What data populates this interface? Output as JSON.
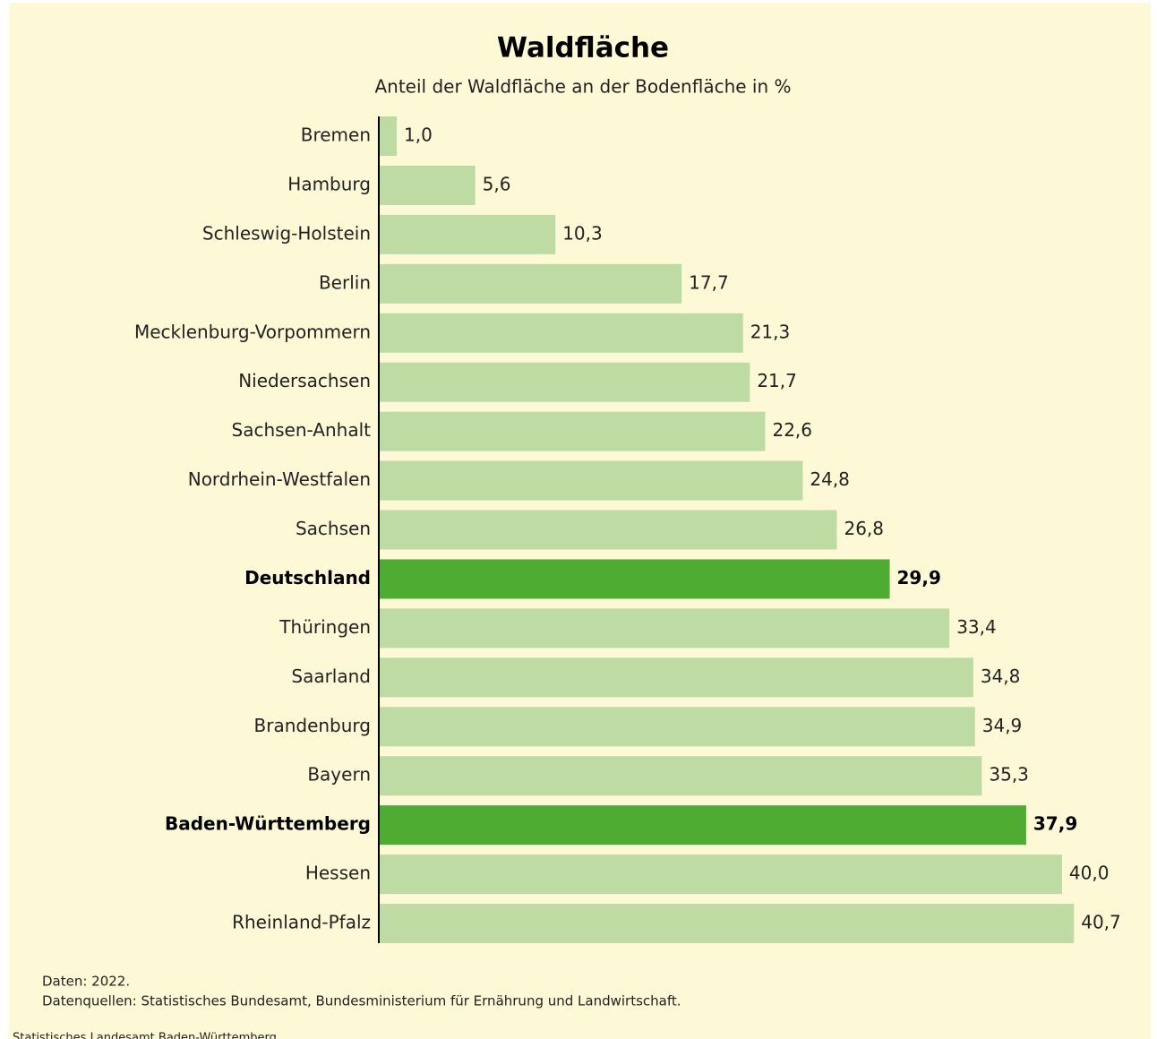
{
  "chart_data": {
    "type": "hbar",
    "title": "Waldfläche",
    "subtitle": "Anteil der Waldfläche an der Bodenfläche in %",
    "categories": [
      "Bremen",
      "Hamburg",
      "Schleswig-Holstein",
      "Berlin",
      "Mecklenburg-Vorpommern",
      "Niedersachsen",
      "Sachsen-Anhalt",
      "Nordrhein-Westfalen",
      "Sachsen",
      "Deutschland",
      "Thüringen",
      "Saarland",
      "Brandenburg",
      "Bayern",
      "Baden-Württemberg",
      "Hessen",
      "Rheinland-Pfalz"
    ],
    "values": [
      1.0,
      5.6,
      10.3,
      17.7,
      21.3,
      21.7,
      22.6,
      24.8,
      26.8,
      29.9,
      33.4,
      34.8,
      34.9,
      35.3,
      37.9,
      40.0,
      40.7
    ],
    "value_labels": [
      "1,0",
      "5,6",
      "10,3",
      "17,7",
      "21,3",
      "21,7",
      "22,6",
      "24,8",
      "26,8",
      "29,9",
      "33,4",
      "34,8",
      "34,9",
      "35,3",
      "37,9",
      "40,0",
      "40,7"
    ],
    "colors": [
      "#bedba4",
      "#bedba4",
      "#bedba4",
      "#bedba4",
      "#bedba4",
      "#bedba4",
      "#bedba4",
      "#bedba4",
      "#bedba4",
      "#4fac33",
      "#bedba4",
      "#bedba4",
      "#bedba4",
      "#bedba4",
      "#4fac33",
      "#bedba4",
      "#bedba4"
    ],
    "xlim": [
      0,
      42
    ],
    "notes": [
      "Daten: 2022.",
      "Datenquellen: Statistisches Bundesamt, Bundesministerium für Ernährung und Landwirtschaft."
    ],
    "source": "Statistisches Landesamt Baden-Württemberg"
  }
}
